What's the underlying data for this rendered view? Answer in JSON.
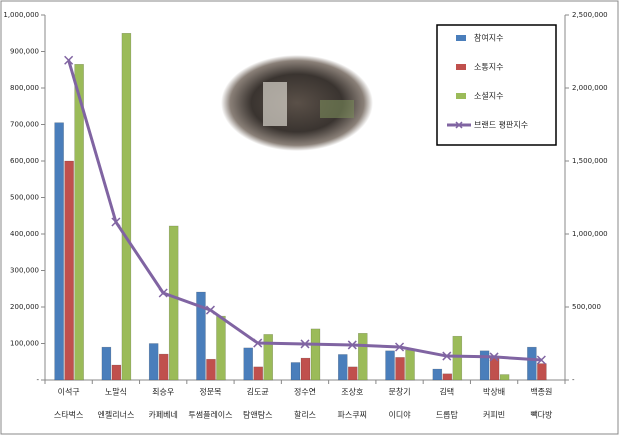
{
  "chart_data": {
    "type": "bar",
    "categories": [
      "이석구",
      "노말식",
      "최승우",
      "정문목",
      "김도균",
      "정수연",
      "조상호",
      "문창기",
      "김택",
      "박상배",
      "백종원"
    ],
    "subcategories": [
      "스타벅스",
      "엔젤리너스",
      "카페베네",
      "투썸플레이스",
      "탐앤탐스",
      "할리스",
      "파스쿠찌",
      "이디야",
      "드롭탑",
      "커피빈",
      "빽다방"
    ],
    "series": [
      {
        "name": "참여지수",
        "color": "#4a7ebb",
        "values": [
          705000,
          90000,
          100000,
          241000,
          88000,
          48000,
          70000,
          80000,
          30000,
          80000,
          90000
        ]
      },
      {
        "name": "소통지수",
        "color": "#c0504d",
        "values": [
          600000,
          41000,
          71000,
          57000,
          36000,
          60000,
          36000,
          62000,
          17000,
          65000,
          45000
        ]
      },
      {
        "name": "소셜지수",
        "color": "#9bbb59",
        "values": [
          865000,
          950000,
          422000,
          175000,
          125000,
          140000,
          128000,
          82000,
          120000,
          15000,
          0
        ]
      },
      {
        "name": "브랜드 평판지수",
        "color": "#8064a2",
        "type": "line",
        "axis": "y2",
        "values": [
          2190000,
          1082000,
          596000,
          479000,
          253000,
          247000,
          240000,
          226000,
          164000,
          158000,
          137000
        ]
      }
    ],
    "ylim": [
      0,
      1000000
    ],
    "yticks": [
      {
        "value": 0,
        "label": "-"
      },
      {
        "value": 100000,
        "label": "100,000"
      },
      {
        "value": 200000,
        "label": "200,000"
      },
      {
        "value": 300000,
        "label": "300,000"
      },
      {
        "value": 400000,
        "label": "400,000"
      },
      {
        "value": 500000,
        "label": "500,000"
      },
      {
        "value": 600000,
        "label": "600,000"
      },
      {
        "value": 700000,
        "label": "700,000"
      },
      {
        "value": 800000,
        "label": "800,000"
      },
      {
        "value": 900000,
        "label": "900,000"
      },
      {
        "value": 1000000,
        "label": "1,000,000"
      }
    ],
    "y2lim": [
      0,
      2500000
    ],
    "y2ticks": [
      {
        "value": 0,
        "label": "-"
      },
      {
        "value": 500000,
        "label": "500,000"
      },
      {
        "value": 1000000,
        "label": "1,000,000"
      },
      {
        "value": 1500000,
        "label": "1,500,000"
      },
      {
        "value": 2000000,
        "label": "2,000,000"
      },
      {
        "value": 2500000,
        "label": "2,500,000"
      }
    ],
    "legend": "top-right"
  }
}
